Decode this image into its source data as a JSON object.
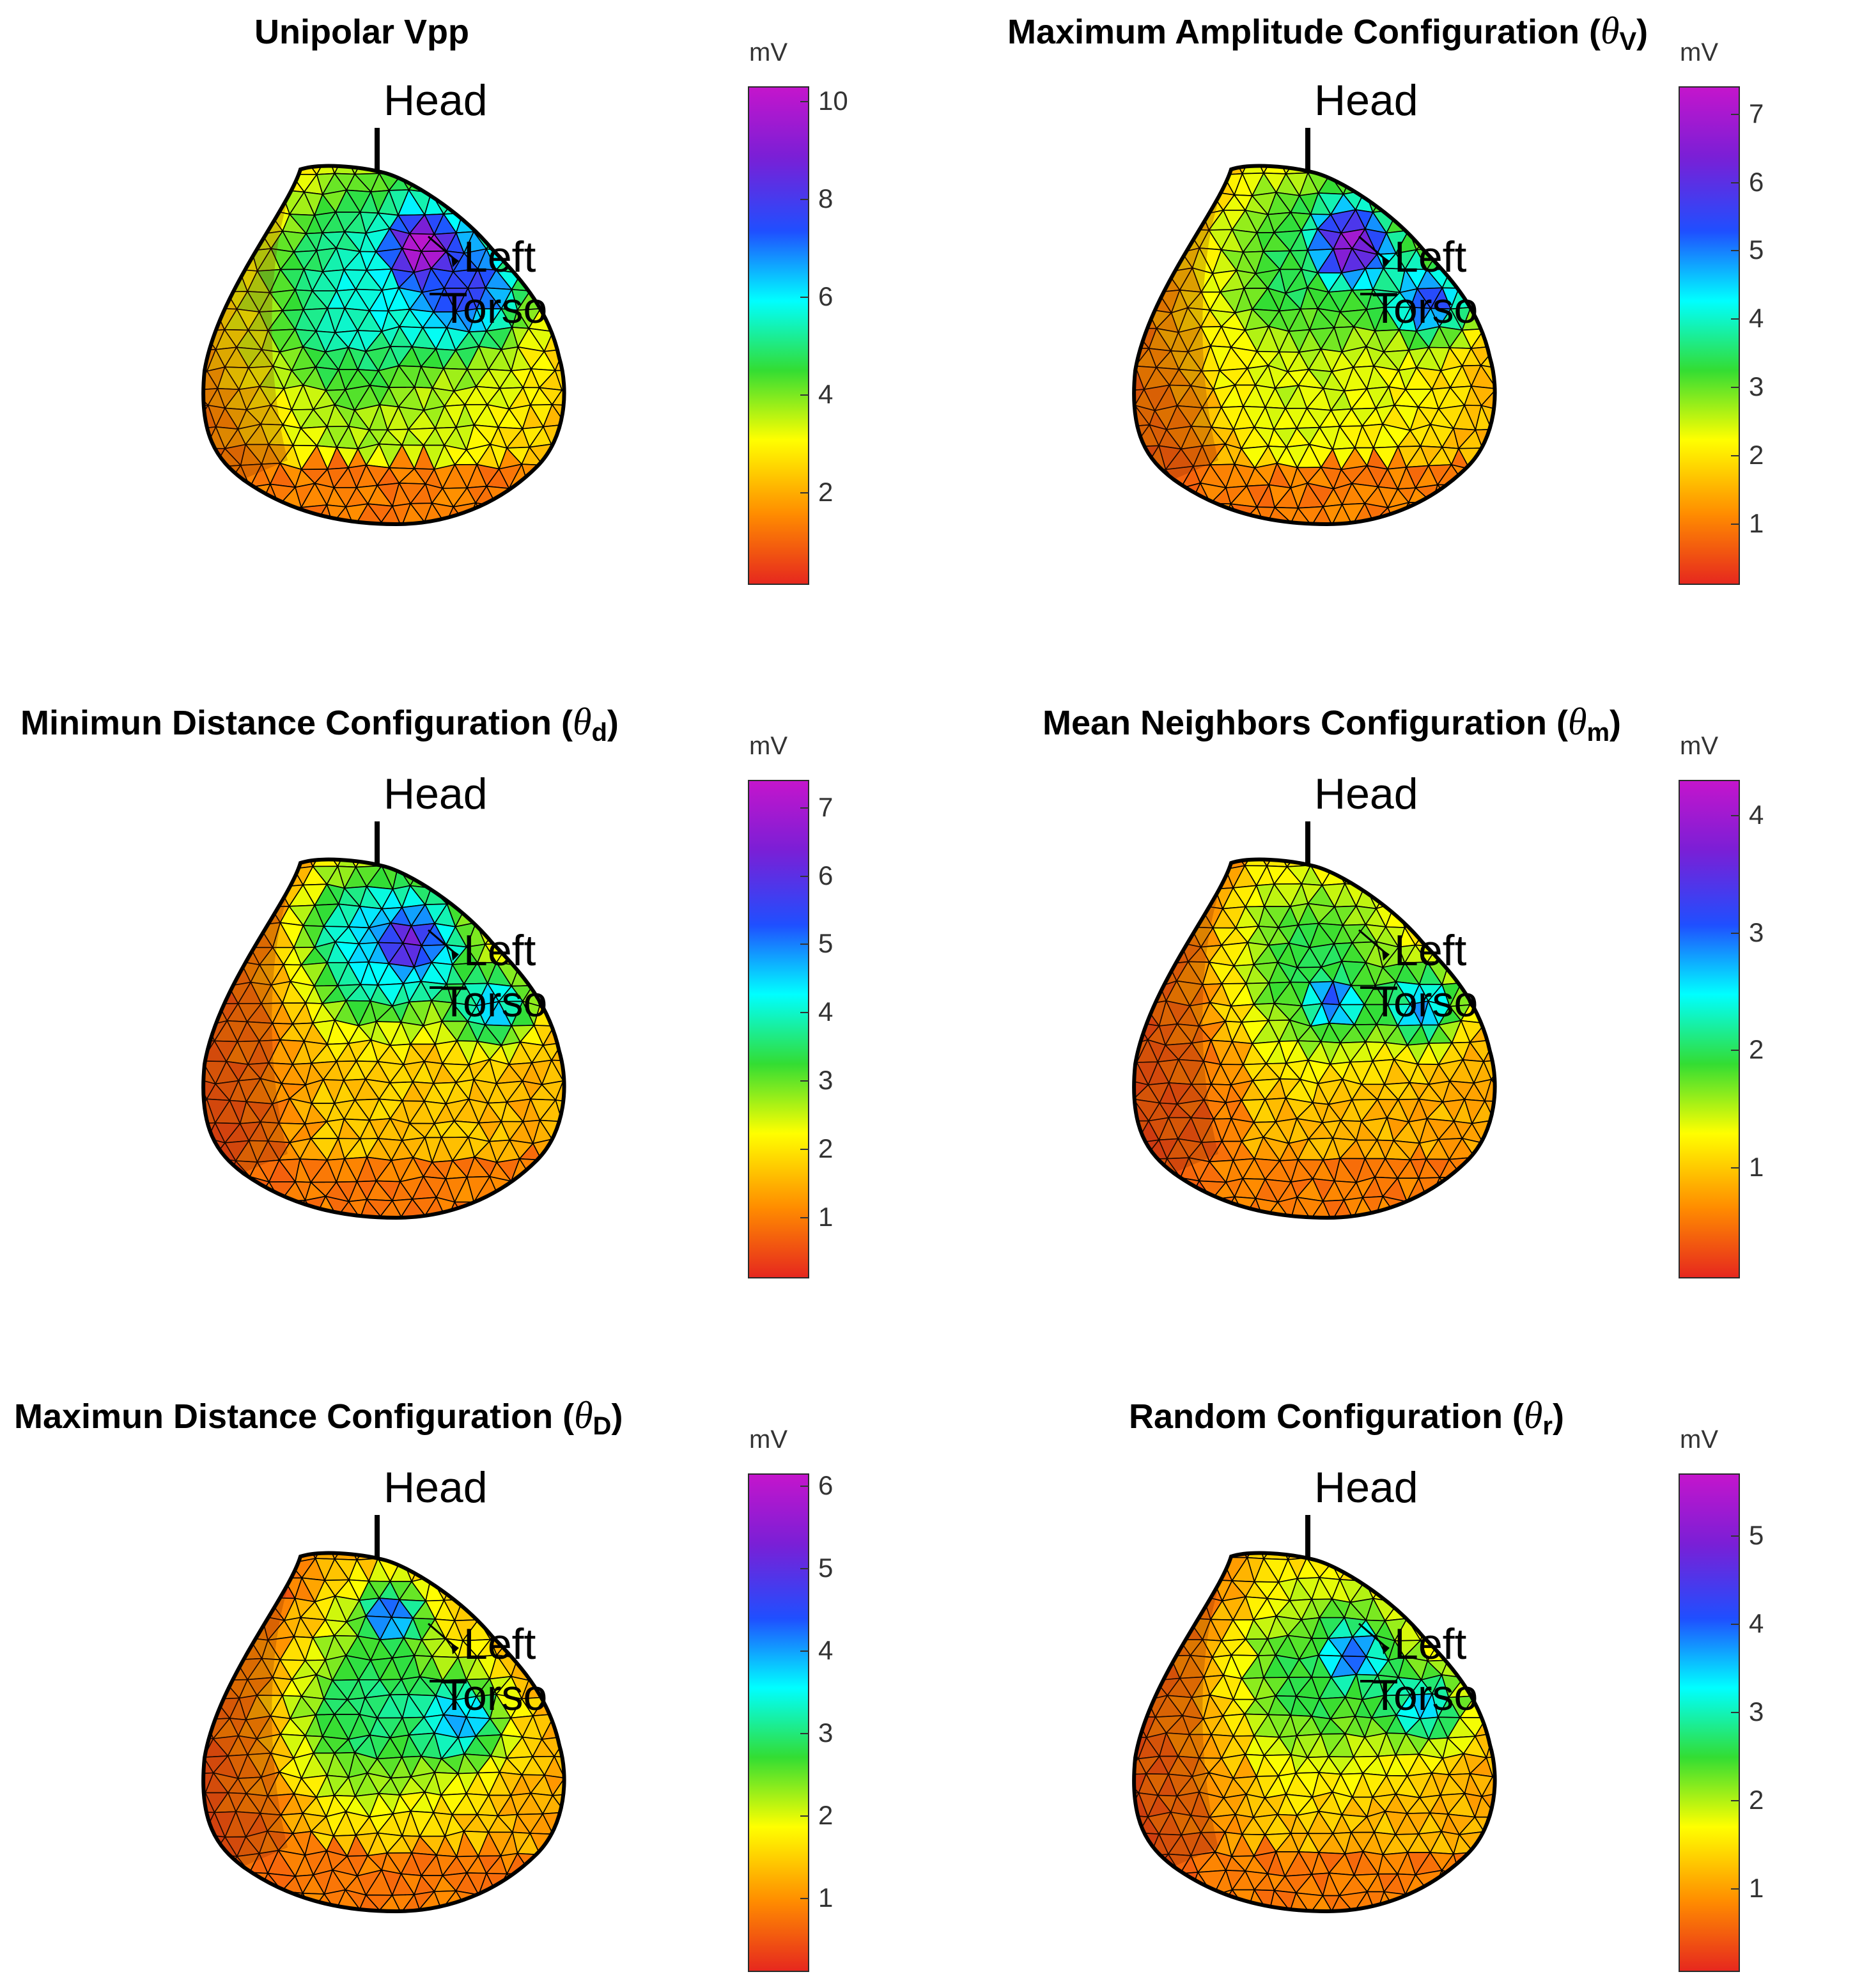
{
  "colors": {
    "colormap": [
      "#e6281e",
      "#ff8c00",
      "#ffff00",
      "#33dd33",
      "#00ffff",
      "#1f4fff",
      "#7a1fd6",
      "#c415cc"
    ],
    "mesh_line": "#000000",
    "axis": "#333333"
  },
  "chart_data": [
    {
      "type": "heatmap",
      "title": "Unipolar Vpp",
      "title_main": "Unipolar Vpp",
      "symbol": "",
      "subscript": "",
      "title_close": "",
      "colorbar_label": "mV",
      "colorbar_range": [
        0.1,
        10.3
      ],
      "ticks": [
        2,
        4,
        6,
        8,
        10
      ],
      "annotations": [
        "Head",
        "Left",
        "Torso"
      ]
    },
    {
      "type": "heatmap",
      "title": "Maximum Amplitude Configuration (θV)",
      "title_main": "Maximum Amplitude Configuration (",
      "symbol": "θ",
      "subscript": "V",
      "title_close": ")",
      "colorbar_label": "mV",
      "colorbar_range": [
        0.1,
        7.4
      ],
      "ticks": [
        1,
        2,
        3,
        4,
        5,
        6,
        7
      ],
      "annotations": [
        "Head",
        "Left",
        "Torso"
      ]
    },
    {
      "type": "heatmap",
      "title": "Minimun Distance Configuration (θd)",
      "title_main": "Minimun Distance Configuration (",
      "symbol": "θ",
      "subscript": "d",
      "title_close": ")",
      "colorbar_label": "mV",
      "colorbar_range": [
        0.1,
        7.4
      ],
      "ticks": [
        1,
        2,
        3,
        4,
        5,
        6,
        7
      ],
      "annotations": [
        "Head",
        "Left",
        "Torso"
      ]
    },
    {
      "type": "heatmap",
      "title": "Mean Neighbors Configuration (θm)",
      "title_main": "Mean Neighbors Configuration (",
      "symbol": "θ",
      "subscript": "m",
      "title_close": ")",
      "colorbar_label": "mV",
      "colorbar_range": [
        0.05,
        4.3
      ],
      "ticks": [
        1,
        2,
        3,
        4
      ],
      "annotations": [
        "Head",
        "Left",
        "Torso"
      ]
    },
    {
      "type": "heatmap",
      "title": "Maximun Distance Configuration (θD)",
      "title_main": "Maximun Distance Configuration (",
      "symbol": "θ",
      "subscript": "D",
      "title_close": ")",
      "colorbar_label": "mV",
      "colorbar_range": [
        0.1,
        6.15
      ],
      "ticks": [
        1,
        2,
        3,
        4,
        5,
        6
      ],
      "annotations": [
        "Head",
        "Left",
        "Torso"
      ]
    },
    {
      "type": "heatmap",
      "title": "Random Configuration (θr)",
      "title_main": "Random Configuration (",
      "symbol": "θ",
      "subscript": "r",
      "title_close": ")",
      "colorbar_label": "mV",
      "colorbar_range": [
        0.05,
        5.7
      ],
      "ticks": [
        1,
        2,
        3,
        4,
        5
      ],
      "annotations": [
        "Head",
        "Left",
        "Torso"
      ]
    }
  ]
}
